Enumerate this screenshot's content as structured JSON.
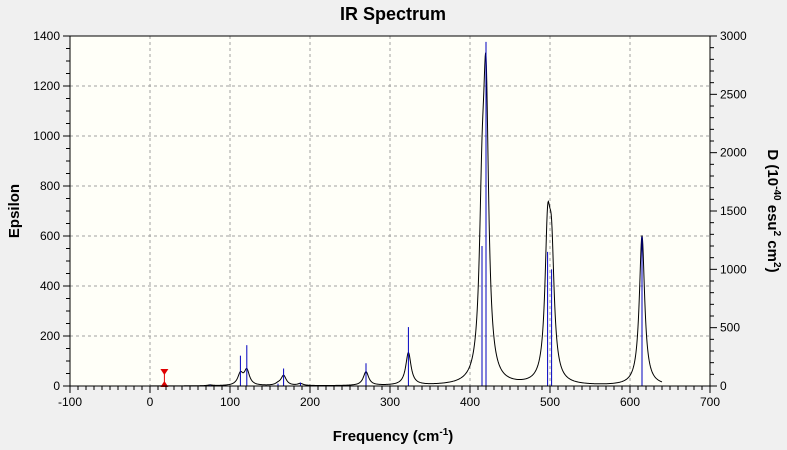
{
  "chart_data": {
    "type": "line",
    "title": "IR Spectrum",
    "xlabel": {
      "text": "Frequency (cm",
      "sup": "-1",
      "close": ")"
    },
    "ylabel_left": "Epsilon",
    "ylabel_right": {
      "p1": "D (10",
      "sup1": "-40",
      "p2": " esu",
      "sup2": "2",
      "p3": " cm",
      "sup3": "2",
      "p4": ")"
    },
    "xlim": [
      -100,
      700
    ],
    "ylim_left": [
      0,
      1400
    ],
    "ylim_right": [
      0,
      3000
    ],
    "x_ticks": [
      -100,
      0,
      100,
      200,
      300,
      400,
      500,
      600,
      700
    ],
    "y_left_ticks": [
      0,
      200,
      400,
      600,
      800,
      1000,
      1200,
      1400
    ],
    "y_right_ticks": [
      0,
      500,
      1000,
      1500,
      2000,
      2500,
      3000
    ],
    "grid": true,
    "spectrum_x_range": [
      0,
      640
    ],
    "peak_width": 4,
    "peaks": [
      {
        "x": 75,
        "eps": 3,
        "d": 10
      },
      {
        "x": 113,
        "eps": 45,
        "d": 260
      },
      {
        "x": 121,
        "eps": 60,
        "d": 350
      },
      {
        "x": 160,
        "eps": 6,
        "d": 20
      },
      {
        "x": 167,
        "eps": 40,
        "d": 150
      },
      {
        "x": 188,
        "eps": 8,
        "d": 30
      },
      {
        "x": 270,
        "eps": 55,
        "d": 195
      },
      {
        "x": 323,
        "eps": 130,
        "d": 505
      },
      {
        "x": 415,
        "eps": 560,
        "d": 1200
      },
      {
        "x": 420,
        "eps": 1100,
        "d": 2950
      },
      {
        "x": 497,
        "eps": 540,
        "d": 1150
      },
      {
        "x": 502,
        "eps": 450,
        "d": 1000
      },
      {
        "x": 615,
        "eps": 600,
        "d": 1280
      }
    ],
    "marker": {
      "x": 18,
      "color": "#e00000"
    },
    "colors": {
      "curve": "#000000",
      "sticks": "#0000c0",
      "grid": "#a0a0a0",
      "plot_bg": "#fffff8"
    }
  }
}
